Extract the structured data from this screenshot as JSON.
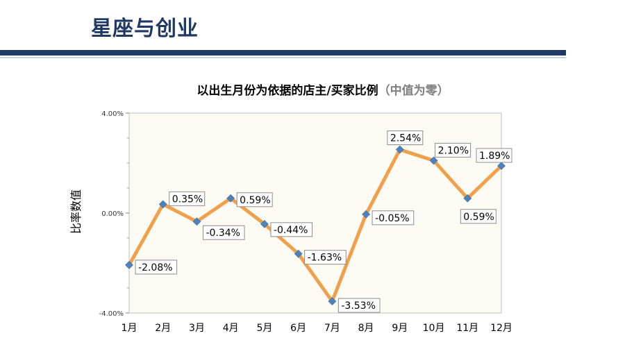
{
  "page": {
    "title": "星座与创业"
  },
  "chart_data": {
    "type": "line",
    "title": "以出生月份为依据的店主/买家比例",
    "subtitle": "（中值为零）",
    "xlabel": "",
    "ylabel": "比率数值",
    "categories": [
      "1月",
      "2月",
      "3月",
      "4月",
      "5月",
      "6月",
      "7月",
      "8月",
      "9月",
      "10月",
      "11月",
      "12月"
    ],
    "series": [
      {
        "values": [
          -2.08,
          0.35,
          -0.34,
          0.59,
          -0.44,
          -1.63,
          -3.53,
          -0.05,
          2.54,
          2.1,
          0.59,
          1.89
        ]
      }
    ],
    "data_labels": [
      "-2.08%",
      "0.35%",
      "-0.34%",
      "0.59%",
      "-0.44%",
      "-1.63%",
      "-3.53%",
      "-0.05%",
      "2.54%",
      "2.10%",
      "0.59%",
      "1.89%"
    ],
    "yticks": [
      "4.00%",
      "0.00%",
      "-4.00%"
    ],
    "ylim": [
      -4,
      4
    ],
    "grid": false,
    "plot_background": "#fbfbf3",
    "line_color": "#f0a04b",
    "marker_color": "#4f81bd",
    "marker_shape": "diamond"
  }
}
